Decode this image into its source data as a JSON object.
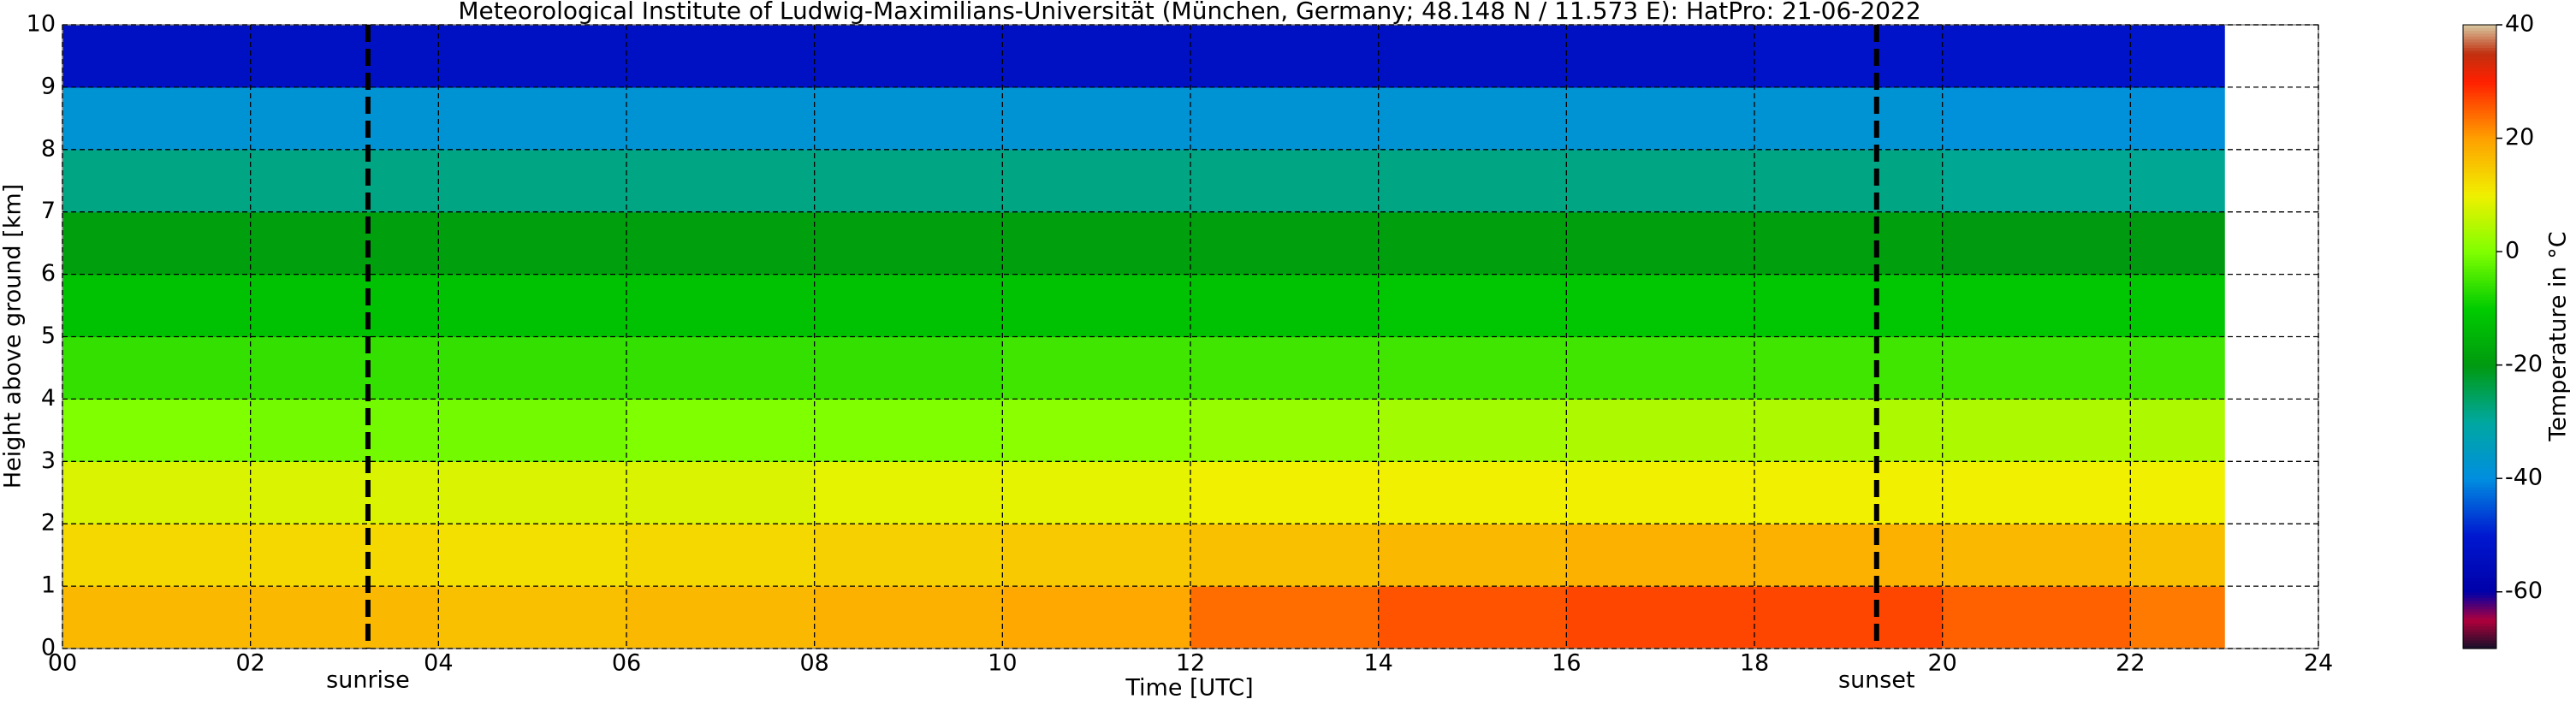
{
  "chart_data": {
    "type": "heatmap",
    "title": "Meteorological Institute of Ludwig-Maximilians-Universität (München, Germany; 48.148 N / 11.573 E):    HatPro: 21-06-2022",
    "xlabel": "Time [UTC]",
    "ylabel": "Height above ground [km]",
    "colorbar_label": "Temperature in °C",
    "x_edges": [
      0,
      2,
      4,
      6,
      8,
      10,
      12,
      14,
      16,
      18,
      20,
      22,
      23
    ],
    "y_edges": [
      0,
      1,
      2,
      3,
      4,
      5,
      6,
      7,
      8,
      9,
      10
    ],
    "z": [
      [
        17,
        17,
        16,
        17,
        18,
        19,
        24,
        26,
        27,
        27,
        25,
        23
      ],
      [
        13,
        13,
        12,
        13,
        14,
        15,
        16,
        17,
        18,
        18,
        17,
        16
      ],
      [
        8,
        8,
        8,
        8,
        9,
        9,
        10,
        10,
        10,
        10,
        10,
        10
      ],
      [
        0,
        -1,
        -1,
        0,
        0,
        1,
        2,
        3,
        4,
        4,
        4,
        4
      ],
      [
        -6,
        -6,
        -6,
        -6,
        -6,
        -5,
        -5,
        -5,
        -5,
        -5,
        -5,
        -5
      ],
      [
        -12,
        -12,
        -12,
        -12,
        -12,
        -12,
        -12,
        -11,
        -11,
        -11,
        -11,
        -11
      ],
      [
        -19,
        -19,
        -19,
        -19,
        -19,
        -19,
        -19,
        -19,
        -19,
        -19,
        -20,
        -20
      ],
      [
        -28,
        -28,
        -28,
        -28,
        -28,
        -28,
        -28,
        -28,
        -28,
        -28,
        -29,
        -29
      ],
      [
        -38,
        -38,
        -38,
        -38,
        -38,
        -38,
        -38,
        -38,
        -38,
        -38,
        -39,
        -39
      ],
      [
        -53,
        -53,
        -53,
        -53,
        -53,
        -53,
        -53,
        -53,
        -53,
        -52,
        -52,
        -51
      ]
    ],
    "xlim": [
      0,
      24
    ],
    "ylim": [
      0,
      10
    ],
    "xticks": [
      {
        "value": 0,
        "label": "00"
      },
      {
        "value": 2,
        "label": "02"
      },
      {
        "value": 4,
        "label": "04"
      },
      {
        "value": 6,
        "label": "06"
      },
      {
        "value": 8,
        "label": "08"
      },
      {
        "value": 10,
        "label": "10"
      },
      12,
      14,
      16,
      18,
      20,
      22,
      24
    ],
    "yticks": [
      0,
      1,
      2,
      3,
      4,
      5,
      6,
      7,
      8,
      9,
      10
    ],
    "clim": [
      -70,
      40
    ],
    "cticks": [
      -60,
      -40,
      -20,
      0,
      20,
      40
    ],
    "colorscale": [
      [
        -70,
        "#14102a"
      ],
      [
        -65,
        "#b0003a"
      ],
      [
        -60,
        "#0000a8"
      ],
      [
        -50,
        "#0018d0"
      ],
      [
        -40,
        "#008ee0"
      ],
      [
        -30,
        "#00a8a0"
      ],
      [
        -20,
        "#009a10"
      ],
      [
        -10,
        "#00cc00"
      ],
      [
        0,
        "#80ff00"
      ],
      [
        10,
        "#f0f000"
      ],
      [
        20,
        "#ffa000"
      ],
      [
        30,
        "#ff2000"
      ],
      [
        35,
        "#c03010"
      ],
      [
        40,
        "#d8c8a0"
      ]
    ],
    "grid": true,
    "annotations": [
      {
        "text": "sunrise",
        "x": 3.25
      },
      {
        "text": "sunset",
        "x": 19.3
      }
    ]
  }
}
